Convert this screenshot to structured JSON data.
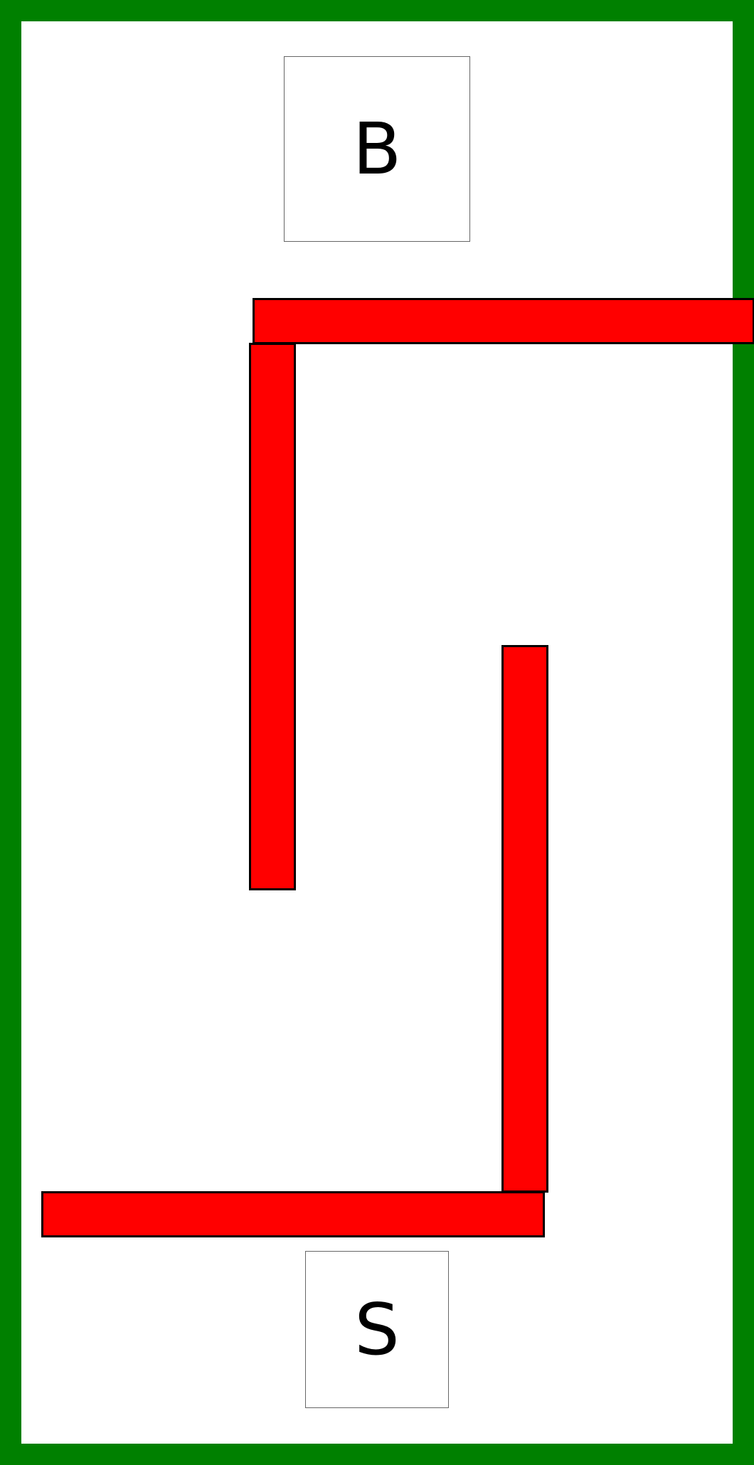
{
  "colors": {
    "border": "#008000",
    "wall": "#ff0000",
    "wall_outline": "#000000",
    "background": "#ffffff"
  },
  "goal": {
    "label": "B"
  },
  "start": {
    "label": "S"
  },
  "walls": [
    {
      "id": "wall-top",
      "orientation": "horizontal"
    },
    {
      "id": "wall-left",
      "orientation": "vertical"
    },
    {
      "id": "wall-right",
      "orientation": "vertical"
    },
    {
      "id": "wall-bottom",
      "orientation": "horizontal"
    }
  ]
}
